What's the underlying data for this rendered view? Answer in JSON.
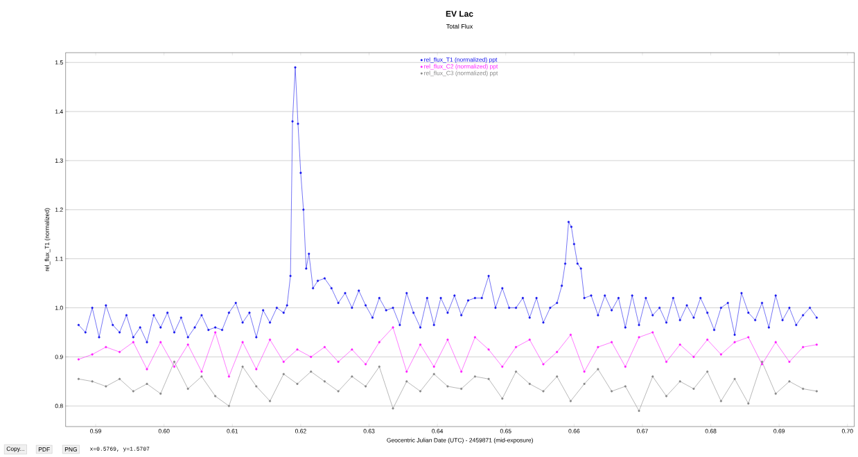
{
  "chart_data": {
    "type": "line",
    "title": "EV Lac",
    "subtitle": "Total Flux",
    "xlabel": "Geocentric Julian Date (UTC) - 2459871 (mid-exposure)",
    "ylabel": "rel_flux_T1 (normalized)",
    "xlim": [
      0.5856,
      0.701
    ],
    "ylim": [
      0.758,
      1.52
    ],
    "xticks": [
      0.59,
      {
        "value": 0.6,
        "label": "0.60"
      },
      0.61,
      0.62,
      0.63,
      0.64,
      0.65,
      0.66,
      0.67,
      0.68,
      0.69,
      {
        "value": 0.7,
        "label": "0.70"
      }
    ],
    "yticks": [
      0.8,
      0.9,
      {
        "value": 1.0,
        "label": "1.0"
      },
      1.1,
      1.2,
      1.3,
      1.4,
      1.5
    ],
    "grid": "y",
    "legend": "top",
    "marker": "circle",
    "line_style": "solid",
    "annotations": [
      "Copy...",
      "PDF",
      "PNG",
      "x=0.5769, y=1.5707"
    ],
    "series": [
      {
        "name": "rel_flux_T1 (normalized) ppt",
        "color": "#1a1aee",
        "x": [
          0.5875,
          0.5885,
          0.5895,
          0.5905,
          0.5915,
          0.5925,
          0.5935,
          0.5945,
          0.5955,
          0.5965,
          0.5975,
          0.5985,
          0.5995,
          0.6005,
          0.6015,
          0.6025,
          0.6035,
          0.6045,
          0.6055,
          0.6065,
          0.6075,
          0.6085,
          0.6095,
          0.6105,
          0.6115,
          0.6125,
          0.6135,
          0.6145,
          0.6155,
          0.6165,
          0.6175,
          0.618,
          0.6185,
          0.6188,
          0.6192,
          0.6196,
          0.62,
          0.6204,
          0.6208,
          0.6212,
          0.6218,
          0.6225,
          0.6235,
          0.6245,
          0.6255,
          0.6265,
          0.6275,
          0.6285,
          0.6295,
          0.6305,
          0.6315,
          0.6325,
          0.6335,
          0.6345,
          0.6355,
          0.6365,
          0.6375,
          0.6385,
          0.6395,
          0.6405,
          0.6415,
          0.6425,
          0.6435,
          0.6445,
          0.6455,
          0.6465,
          0.6475,
          0.6485,
          0.6495,
          0.6505,
          0.6515,
          0.6525,
          0.6535,
          0.6545,
          0.6555,
          0.6565,
          0.6575,
          0.6582,
          0.6587,
          0.6592,
          0.6596,
          0.66,
          0.6605,
          0.661,
          0.6615,
          0.6625,
          0.6635,
          0.6645,
          0.6655,
          0.6665,
          0.6675,
          0.6685,
          0.6695,
          0.6705,
          0.6715,
          0.6725,
          0.6735,
          0.6745,
          0.6755,
          0.6765,
          0.6775,
          0.6785,
          0.6795,
          0.6805,
          0.6815,
          0.6825,
          0.6835,
          0.6845,
          0.6855,
          0.6865,
          0.6875,
          0.6885,
          0.6895,
          0.6905,
          0.6915,
          0.6925,
          0.6935,
          0.6945,
          0.6955
        ],
        "values": [
          0.965,
          0.95,
          1.0,
          0.94,
          1.005,
          0.965,
          0.95,
          0.985,
          0.94,
          0.96,
          0.93,
          0.985,
          0.96,
          0.99,
          0.95,
          0.98,
          0.94,
          0.96,
          0.985,
          0.955,
          0.96,
          0.955,
          0.99,
          1.01,
          0.97,
          0.99,
          0.94,
          0.995,
          0.97,
          1.0,
          0.99,
          1.005,
          1.065,
          1.38,
          1.49,
          1.375,
          1.275,
          1.2,
          1.08,
          1.11,
          1.04,
          1.055,
          1.06,
          1.04,
          1.01,
          1.03,
          1.0,
          1.035,
          1.005,
          0.98,
          1.02,
          0.995,
          1.0,
          0.965,
          1.03,
          0.99,
          0.96,
          1.02,
          0.965,
          1.02,
          0.99,
          1.025,
          0.985,
          1.015,
          1.02,
          1.02,
          1.065,
          1.0,
          1.04,
          1.0,
          1.0,
          1.02,
          0.98,
          1.02,
          0.97,
          1.0,
          1.01,
          1.045,
          1.09,
          1.175,
          1.165,
          1.13,
          1.09,
          1.08,
          1.02,
          1.025,
          0.985,
          1.025,
          0.995,
          1.02,
          0.96,
          1.025,
          0.965,
          1.02,
          0.985,
          1.0,
          0.97,
          1.02,
          0.975,
          1.005,
          0.98,
          1.02,
          0.99,
          0.955,
          1.0,
          1.01,
          0.945,
          1.03,
          0.99,
          0.975,
          1.01,
          0.96,
          1.025,
          0.975,
          1.0,
          0.965,
          0.985,
          1.0,
          0.98
        ]
      },
      {
        "name": "rel_flux_C2 (normalized) ppt",
        "color": "#ff20ff",
        "x": [
          0.5875,
          0.5895,
          0.5915,
          0.5935,
          0.5955,
          0.5975,
          0.5995,
          0.6015,
          0.6035,
          0.6055,
          0.6075,
          0.6095,
          0.6115,
          0.6135,
          0.6155,
          0.6175,
          0.6195,
          0.6215,
          0.6235,
          0.6255,
          0.6275,
          0.6295,
          0.6315,
          0.6335,
          0.6355,
          0.6375,
          0.6395,
          0.6415,
          0.6435,
          0.6455,
          0.6475,
          0.6495,
          0.6515,
          0.6535,
          0.6555,
          0.6575,
          0.6595,
          0.6615,
          0.6635,
          0.6655,
          0.6675,
          0.6695,
          0.6715,
          0.6735,
          0.6755,
          0.6775,
          0.6795,
          0.6815,
          0.6835,
          0.6855,
          0.6875,
          0.6895,
          0.6915,
          0.6935,
          0.6955
        ],
        "values": [
          0.895,
          0.905,
          0.92,
          0.91,
          0.93,
          0.875,
          0.93,
          0.88,
          0.925,
          0.87,
          0.95,
          0.86,
          0.93,
          0.875,
          0.935,
          0.89,
          0.915,
          0.9,
          0.92,
          0.89,
          0.915,
          0.885,
          0.93,
          0.96,
          0.87,
          0.925,
          0.88,
          0.935,
          0.87,
          0.94,
          0.915,
          0.88,
          0.92,
          0.935,
          0.885,
          0.91,
          0.945,
          0.87,
          0.92,
          0.93,
          0.88,
          0.94,
          0.95,
          0.89,
          0.925,
          0.9,
          0.935,
          0.905,
          0.93,
          0.94,
          0.885,
          0.93,
          0.89,
          0.92,
          0.925
        ]
      },
      {
        "name": "rel_flux_C3 (normalized) ppt",
        "color": "#888888",
        "x": [
          0.5875,
          0.5895,
          0.5915,
          0.5935,
          0.5955,
          0.5975,
          0.5995,
          0.6015,
          0.6035,
          0.6055,
          0.6075,
          0.6095,
          0.6115,
          0.6135,
          0.6155,
          0.6175,
          0.6195,
          0.6215,
          0.6235,
          0.6255,
          0.6275,
          0.6295,
          0.6315,
          0.6335,
          0.6355,
          0.6375,
          0.6395,
          0.6415,
          0.6435,
          0.6455,
          0.6475,
          0.6495,
          0.6515,
          0.6535,
          0.6555,
          0.6575,
          0.6595,
          0.6615,
          0.6635,
          0.6655,
          0.6675,
          0.6695,
          0.6715,
          0.6735,
          0.6755,
          0.6775,
          0.6795,
          0.6815,
          0.6835,
          0.6855,
          0.6875,
          0.6895,
          0.6915,
          0.6935,
          0.6955
        ],
        "values": [
          0.855,
          0.85,
          0.84,
          0.855,
          0.83,
          0.845,
          0.825,
          0.89,
          0.835,
          0.86,
          0.82,
          0.8,
          0.88,
          0.84,
          0.81,
          0.865,
          0.845,
          0.87,
          0.85,
          0.83,
          0.86,
          0.84,
          0.88,
          0.795,
          0.85,
          0.83,
          0.865,
          0.84,
          0.835,
          0.86,
          0.855,
          0.815,
          0.87,
          0.845,
          0.83,
          0.86,
          0.81,
          0.845,
          0.875,
          0.83,
          0.84,
          0.79,
          0.86,
          0.82,
          0.85,
          0.835,
          0.87,
          0.81,
          0.855,
          0.805,
          0.89,
          0.825,
          0.85,
          0.835,
          0.83
        ]
      }
    ]
  }
}
